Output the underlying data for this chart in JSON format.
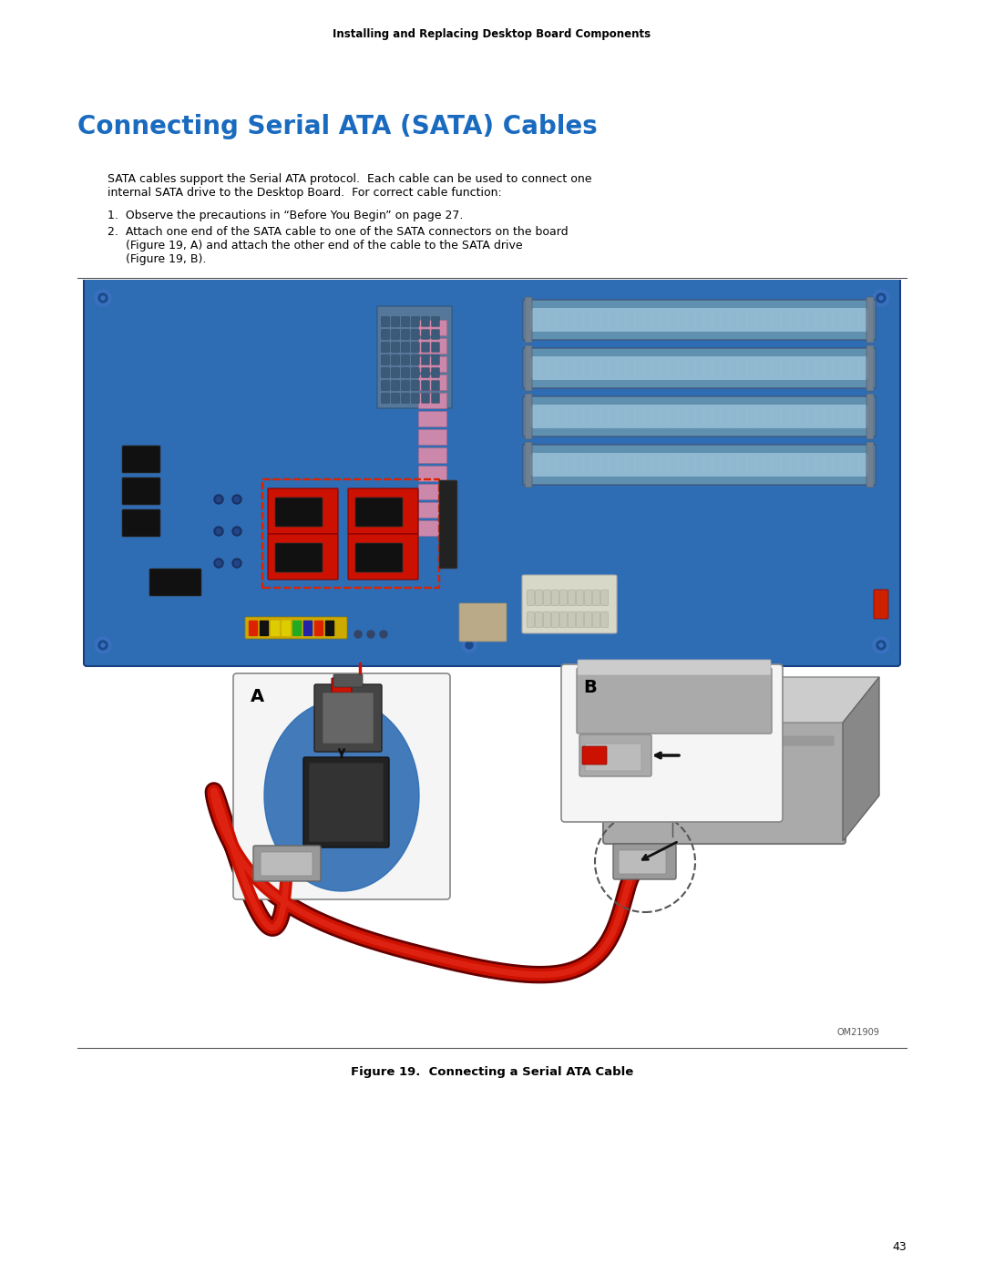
{
  "page_bg": "#ffffff",
  "header_text": "Installing and Replacing Desktop Board Components",
  "header_fontsize": 8.5,
  "header_color": "#000000",
  "title": "Connecting Serial ATA (SATA) Cables",
  "title_color": "#1a6bbf",
  "title_fontsize": 20,
  "body_fontsize": 9,
  "body_color": "#000000",
  "body_text_1_line1": "SATA cables support the Serial ATA protocol.  Each cable can be used to connect one",
  "body_text_1_line2": "internal SATA drive to the Desktop Board.  For correct cable function:",
  "list_item_1": "1.  Observe the precautions in “Before You Begin” on page 27.",
  "list_item_2_line1": "2.  Attach one end of the SATA cable to one of the SATA connectors on the board",
  "list_item_2_line2": "     (Figure 19, A) and attach the other end of the cable to the SATA drive",
  "list_item_2_line3": "     (Figure 19, B).",
  "figure_caption": "Figure 19.  Connecting a Serial ATA Cable",
  "page_number": "43",
  "board_color": "#2e6db4",
  "board_color_dark": "#1a4a8a",
  "ram_slot_color": "#8ab0cc",
  "ram_dark": "#5580aa",
  "sata_red": "#cc2200",
  "connector_dark": "#333333",
  "connector_gray": "#888888",
  "cable_red": "#cc1100",
  "drive_gray": "#aaaaaa",
  "drive_dark": "#777777"
}
